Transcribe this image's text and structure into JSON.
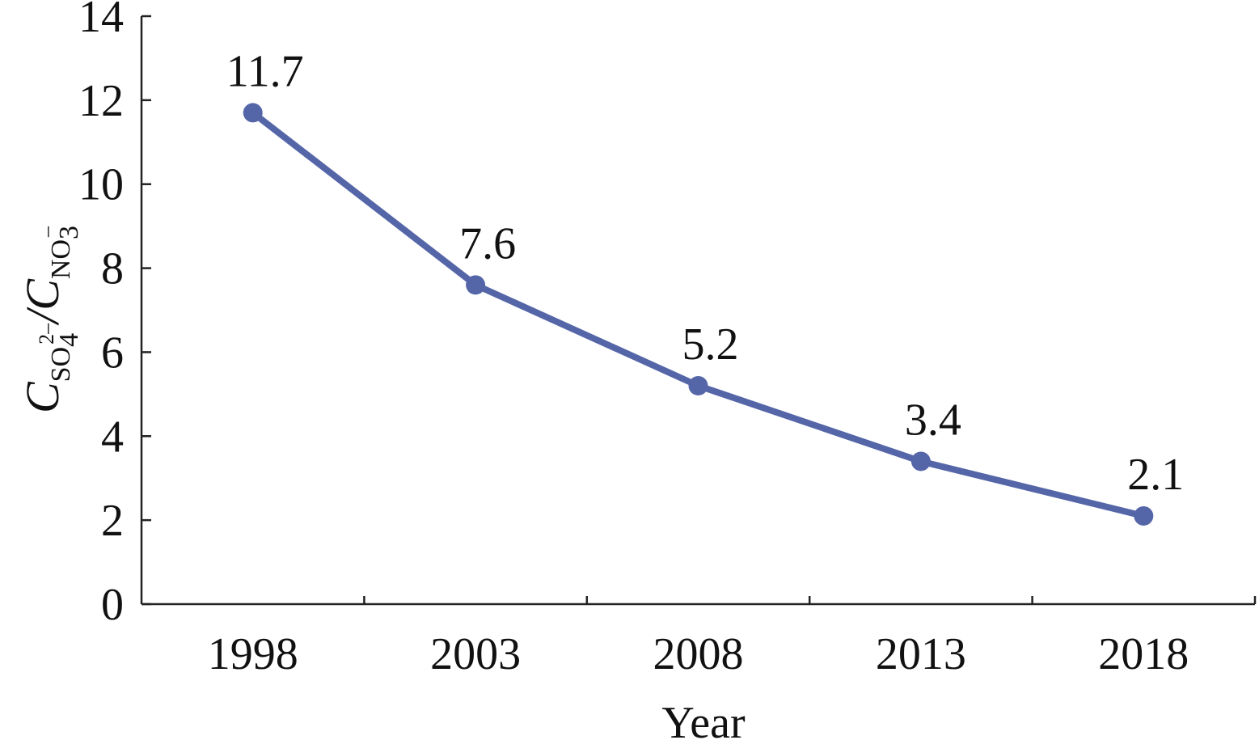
{
  "chart_data": {
    "type": "line",
    "title": "",
    "xlabel": "Year",
    "ylabel": {
      "symbol": "C",
      "slash": "/",
      "numerator_species": "SO",
      "numerator_sub": "4",
      "numerator_sup": "2–",
      "denominator_species": "NO",
      "denominator_sub": "3",
      "denominator_sup": "–"
    },
    "categories": [
      "1998",
      "2003",
      "2008",
      "2013",
      "2018"
    ],
    "series": [
      {
        "values": [
          11.7,
          7.6,
          5.2,
          3.4,
          2.1
        ],
        "data_labels": [
          "11.7",
          "7.6",
          "5.2",
          "3.4",
          "2.1"
        ],
        "color": "#5566a8"
      }
    ],
    "ylim": [
      0,
      14
    ],
    "yticks": [
      0,
      2,
      4,
      6,
      8,
      10,
      12,
      14
    ],
    "grid": false,
    "legend": "none"
  }
}
